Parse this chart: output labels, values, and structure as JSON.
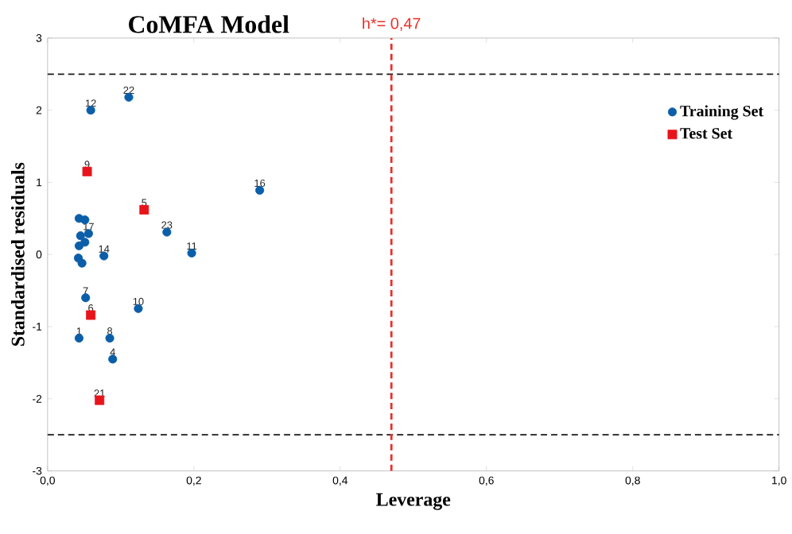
{
  "chart_data": {
    "type": "scatter",
    "title": "CoMFA Model",
    "xlabel": "Leverage",
    "ylabel": "Standardised residuals",
    "xlim": [
      0,
      1
    ],
    "ylim": [
      -3,
      3
    ],
    "xticks": [
      {
        "value": 0,
        "label": "0,0"
      },
      {
        "value": 0.2,
        "label": "0,2"
      },
      {
        "value": 0.4,
        "label": "0,4"
      },
      {
        "value": 0.6,
        "label": "0,6"
      },
      {
        "value": 0.8,
        "label": "0,8"
      },
      {
        "value": 1,
        "label": "1,0"
      }
    ],
    "yticks": [
      -3,
      -2,
      -1,
      0,
      1,
      2,
      3
    ],
    "legend": "top right",
    "series": [
      {
        "name": "Training Set",
        "color": "#0b5ea8",
        "marker": "circle",
        "x": [
          0.043,
          0.042,
          0.047,
          0.089,
          0.052,
          0.085,
          0.124,
          0.197,
          0.059,
          0.045,
          0.077,
          0.051,
          0.29,
          0.056,
          0.043,
          0.051,
          0.043,
          0.111,
          0.163
        ],
        "values": [
          -1.16,
          -0.05,
          -0.12,
          -1.45,
          -0.6,
          -1.16,
          -0.75,
          0.02,
          2.0,
          0.26,
          -0.02,
          0.17,
          0.89,
          0.29,
          0.5,
          0.48,
          0.12,
          2.18,
          0.31
        ]
      },
      {
        "name": "Test Set",
        "color": "#e8141b",
        "marker": "square",
        "x": [
          0.132,
          0.059,
          0.054,
          0.071
        ],
        "values": [
          0.62,
          -0.84,
          1.15,
          -2.02
        ]
      }
    ],
    "annotations": [
      {
        "text": "1",
        "x": 0.043,
        "y": -1.16
      },
      {
        "text": "4",
        "x": 0.089,
        "y": -1.45
      },
      {
        "text": "7",
        "x": 0.052,
        "y": -0.6
      },
      {
        "text": "8",
        "x": 0.085,
        "y": -1.16
      },
      {
        "text": "10",
        "x": 0.124,
        "y": -0.75
      },
      {
        "text": "11",
        "x": 0.197,
        "y": 0.02
      },
      {
        "text": "12",
        "x": 0.059,
        "y": 2.0
      },
      {
        "text": "14",
        "x": 0.077,
        "y": -0.02
      },
      {
        "text": "16",
        "x": 0.29,
        "y": 0.89
      },
      {
        "text": "17",
        "x": 0.056,
        "y": 0.29
      },
      {
        "text": "22",
        "x": 0.111,
        "y": 2.18
      },
      {
        "text": "23",
        "x": 0.163,
        "y": 0.31
      },
      {
        "text": "5",
        "x": 0.132,
        "y": 0.62
      },
      {
        "text": "6",
        "x": 0.059,
        "y": -0.84
      },
      {
        "text": "9",
        "x": 0.054,
        "y": 1.15
      },
      {
        "text": "21",
        "x": 0.071,
        "y": -2.02
      }
    ],
    "ref_lines": [
      {
        "axis": "y",
        "value": 2.5,
        "color": "#1a1a1a",
        "line_style": "dashed"
      },
      {
        "axis": "y",
        "value": -2.5,
        "color": "#1a1a1a",
        "line_style": "dashed"
      },
      {
        "axis": "x",
        "value": 0.47,
        "label": "h*= 0,47",
        "color": "#e8302a",
        "line_style": "dashed"
      }
    ]
  }
}
